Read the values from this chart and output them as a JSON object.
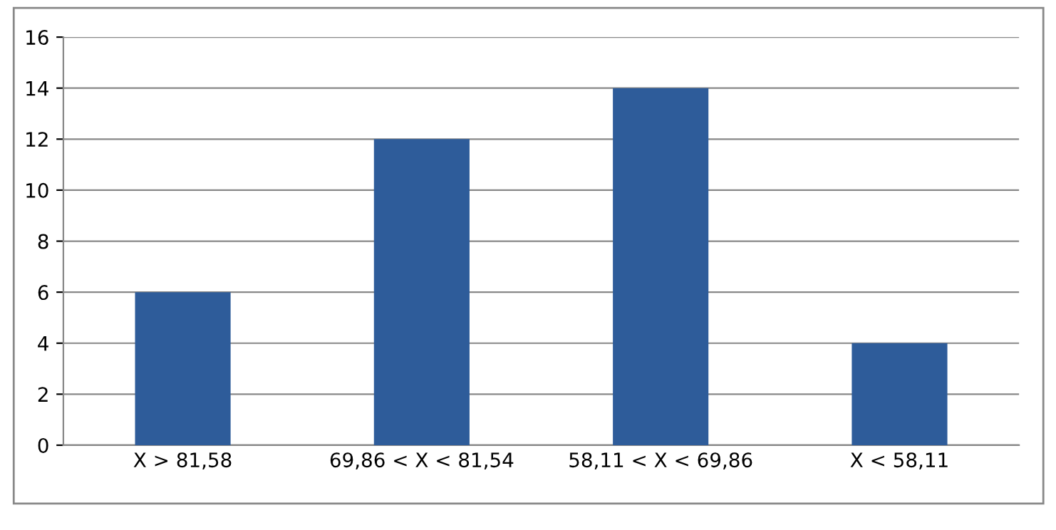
{
  "chart_data": {
    "type": "bar",
    "categories": [
      "X > 81,58",
      "69,86 < X < 81,54",
      "58,11 < X < 69,86",
      "X < 58,11"
    ],
    "values": [
      6,
      12,
      14,
      4
    ],
    "color": "#2e5c9a",
    "ylim": [
      0,
      16
    ],
    "yticks": [
      0,
      2,
      4,
      6,
      8,
      10,
      12,
      14,
      16
    ],
    "grid": "y"
  }
}
